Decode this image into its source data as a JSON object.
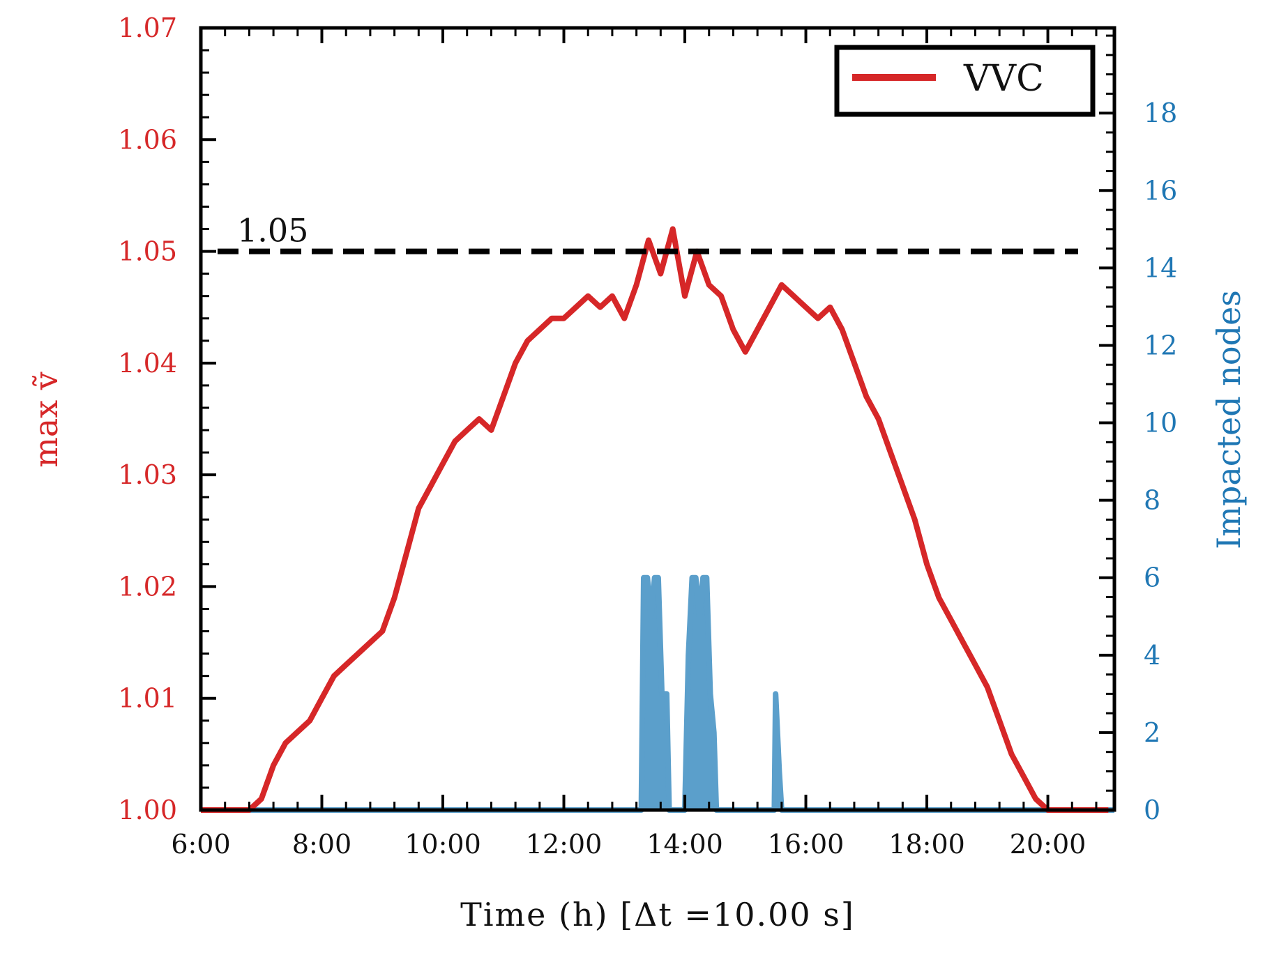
{
  "chart_data": {
    "type": "line",
    "xlabel": "Time (h) [Δt =10.00 s]",
    "ylabel_left": "max ṽ",
    "ylabel_right": "Impacted nodes",
    "x_ticks": [
      "6:00",
      "8:00",
      "10:00",
      "12:00",
      "14:00",
      "16:00",
      "18:00",
      "20:00"
    ],
    "x_tick_hours": [
      6,
      8,
      10,
      12,
      14,
      16,
      18,
      20
    ],
    "xlim_hours": [
      6,
      21.1
    ],
    "ylim_left": [
      1.0,
      1.07
    ],
    "y_ticks_left": [
      "1.00",
      "1.01",
      "1.02",
      "1.03",
      "1.04",
      "1.05",
      "1.06",
      "1.07"
    ],
    "ylim_right": [
      0,
      20.2
    ],
    "y_ticks_right": [
      "0",
      "2",
      "4",
      "6",
      "8",
      "10",
      "12",
      "14",
      "16",
      "18"
    ],
    "threshold": {
      "value": 1.05,
      "label": "1.05"
    },
    "legend": {
      "position": "top-right",
      "entries": [
        "VVC"
      ]
    },
    "colors": {
      "vvc": "#d62728",
      "impacted": "#5b9fcb",
      "left_axis": "#d62728",
      "right_axis": "#1f77b4",
      "threshold": "#000000"
    },
    "series": [
      {
        "name": "VVC",
        "axis": "left",
        "hours": [
          6.0,
          6.4,
          6.8,
          7.0,
          7.2,
          7.4,
          7.6,
          7.8,
          8.0,
          8.2,
          8.4,
          8.6,
          8.8,
          9.0,
          9.2,
          9.4,
          9.6,
          9.8,
          10.0,
          10.2,
          10.4,
          10.6,
          10.8,
          11.0,
          11.2,
          11.4,
          11.6,
          11.8,
          12.0,
          12.2,
          12.4,
          12.6,
          12.8,
          13.0,
          13.2,
          13.4,
          13.6,
          13.8,
          14.0,
          14.2,
          14.4,
          14.6,
          14.8,
          15.0,
          15.2,
          15.4,
          15.6,
          15.8,
          16.0,
          16.2,
          16.4,
          16.6,
          16.8,
          17.0,
          17.2,
          17.4,
          17.6,
          17.8,
          18.0,
          18.2,
          18.4,
          18.6,
          18.8,
          19.0,
          19.2,
          19.4,
          19.6,
          19.8,
          20.0,
          20.2,
          20.4,
          20.6,
          21.0
        ],
        "values": [
          1.0,
          1.0,
          1.0,
          1.001,
          1.004,
          1.006,
          1.007,
          1.008,
          1.01,
          1.012,
          1.013,
          1.014,
          1.015,
          1.016,
          1.019,
          1.023,
          1.027,
          1.029,
          1.031,
          1.033,
          1.034,
          1.035,
          1.034,
          1.037,
          1.04,
          1.042,
          1.043,
          1.044,
          1.044,
          1.045,
          1.046,
          1.045,
          1.046,
          1.044,
          1.047,
          1.051,
          1.048,
          1.052,
          1.046,
          1.05,
          1.047,
          1.046,
          1.043,
          1.041,
          1.043,
          1.045,
          1.047,
          1.046,
          1.045,
          1.044,
          1.045,
          1.043,
          1.04,
          1.037,
          1.035,
          1.032,
          1.029,
          1.026,
          1.022,
          1.019,
          1.017,
          1.015,
          1.013,
          1.011,
          1.008,
          1.005,
          1.003,
          1.001,
          1.0,
          1.0,
          1.0,
          1.0,
          1.0
        ]
      },
      {
        "name": "Impacted nodes",
        "axis": "right",
        "hours": [
          6.0,
          13.28,
          13.32,
          13.38,
          13.44,
          13.5,
          13.56,
          13.62,
          13.7,
          13.74,
          14.0,
          14.06,
          14.12,
          14.18,
          14.24,
          14.3,
          14.36,
          14.42,
          14.48,
          14.52,
          15.48,
          15.5,
          15.56,
          15.6,
          21.1
        ],
        "values": [
          0,
          0,
          6,
          6,
          5,
          6,
          6,
          3,
          3,
          0,
          0,
          4,
          6,
          6,
          5,
          6,
          6,
          3,
          2,
          0,
          0,
          3,
          1,
          0,
          0
        ]
      }
    ]
  }
}
